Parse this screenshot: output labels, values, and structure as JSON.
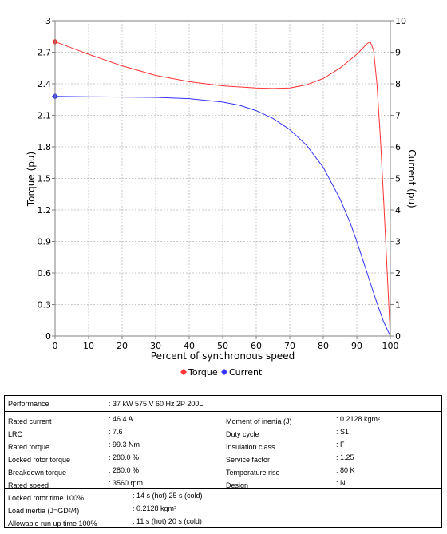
{
  "chart_data": {
    "type": "line",
    "xlabel": "Percent of synchronous speed",
    "ylabel_left": "Torque (pu)",
    "ylabel_right": "Current (pu)",
    "xlim": [
      0,
      100
    ],
    "ylim_left": [
      0,
      3
    ],
    "ylim_right": [
      0,
      10
    ],
    "x_ticks": [
      0,
      10,
      20,
      30,
      40,
      50,
      60,
      70,
      80,
      90,
      100
    ],
    "y_ticks_left": [
      "0",
      "0.3",
      "0.6",
      "0.9",
      "1.2",
      "1.5",
      "1.8",
      "2.1",
      "2.4",
      "2.7",
      "3"
    ],
    "y_ticks_right": [
      "0",
      "1",
      "2",
      "3",
      "4",
      "5",
      "6",
      "7",
      "8",
      "9",
      "10"
    ],
    "grid": true,
    "legend_position": "bottom-center",
    "series": [
      {
        "name": "Torque",
        "axis": "left",
        "color": "#ff3333",
        "marker": "diamond",
        "x": [
          0,
          5,
          10,
          20,
          30,
          40,
          50,
          60,
          65,
          70,
          75,
          80,
          85,
          90,
          93,
          94,
          95,
          96,
          97,
          98,
          99,
          100
        ],
        "y": [
          2.8,
          2.74,
          2.68,
          2.57,
          2.48,
          2.42,
          2.38,
          2.36,
          2.355,
          2.36,
          2.39,
          2.45,
          2.55,
          2.68,
          2.78,
          2.8,
          2.72,
          2.4,
          1.9,
          1.3,
          0.65,
          0
        ]
      },
      {
        "name": "Current",
        "axis": "right",
        "color": "#3333ff",
        "marker": "diamond",
        "x": [
          0,
          10,
          20,
          30,
          40,
          50,
          55,
          60,
          65,
          70,
          75,
          80,
          85,
          88,
          90,
          92,
          94,
          96,
          98,
          100
        ],
        "y": [
          7.6,
          7.59,
          7.58,
          7.57,
          7.53,
          7.42,
          7.32,
          7.15,
          6.9,
          6.55,
          6.05,
          5.35,
          4.35,
          3.6,
          3.0,
          2.35,
          1.7,
          1.05,
          0.45,
          0
        ]
      }
    ]
  },
  "datasheet": {
    "performance": {
      "label": "Performance",
      "value": ": 37 kW 575 V 60 Hz 2P 200L"
    },
    "left_rows": [
      {
        "label": "Rated current",
        "value": ": 46.4 A"
      },
      {
        "label": "LRC",
        "value": ": 7.6"
      },
      {
        "label": "Rated torque",
        "value": ": 99.3 Nm"
      },
      {
        "label": "Locked rotor torque",
        "value": ": 280.0 %"
      },
      {
        "label": "Breakdown torque",
        "value": ": 280.0 %"
      },
      {
        "label": "Rated speed",
        "value": ": 3560 rpm"
      }
    ],
    "right_rows": [
      {
        "label": "Moment of inertia (J)",
        "value": ": 0.2128 kgm²"
      },
      {
        "label": "Duty cycle",
        "value": ": S1"
      },
      {
        "label": "Insulation class",
        "value": ": F"
      },
      {
        "label": "Service factor",
        "value": ": 1.25"
      },
      {
        "label": "Temperature rise",
        "value": ": 80 K"
      },
      {
        "label": "Design",
        "value": ": N"
      }
    ],
    "bottom_rows": [
      {
        "label": "Locked rotor time 100%",
        "value": ": 14 s (hot) 25 s (cold)"
      },
      {
        "label": "Load inertia (J=GD²/4)",
        "value": ": 0.2128 kgm²"
      },
      {
        "label": "Allowable run up time 100%",
        "value": ": 11 s (hot) 20 s (cold)"
      }
    ]
  }
}
